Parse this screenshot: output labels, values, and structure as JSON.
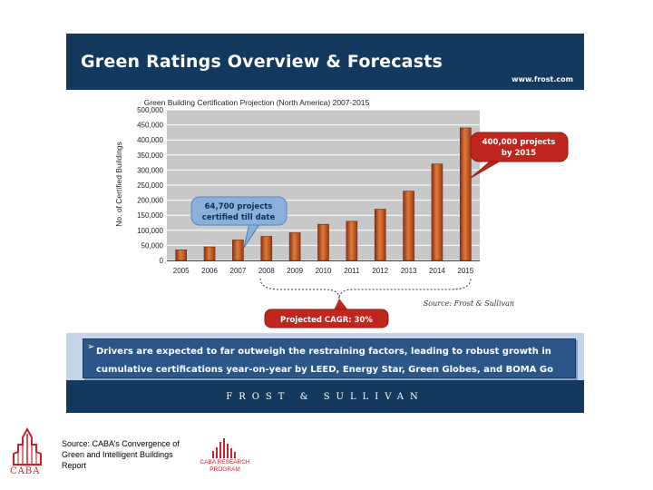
{
  "slide": {
    "title": "Green Ratings Overview & Forecasts",
    "url": "www.frost.com",
    "footer_brand": "FROST & SULLIVAN",
    "callout_arrow": "➢",
    "callout_text": "Drivers are expected to far outweigh the restraining factors, leading to robust growth in cumulative certifications year-on-year by LEED, Energy Star, Green Globes, and BOMA Go Green."
  },
  "chart_data": {
    "type": "bar",
    "title": "Green Building Certification Projection (North America) 2007-2015",
    "ylabel": "No. of Certified Buildings",
    "xlabel": "",
    "categories": [
      "2005",
      "2006",
      "2007",
      "2008",
      "2009",
      "2010",
      "2011",
      "2012",
      "2013",
      "2014",
      "2015"
    ],
    "values": [
      35000,
      45000,
      68000,
      80000,
      92000,
      120000,
      130000,
      170000,
      230000,
      320000,
      440000
    ],
    "ylim": [
      0,
      500000
    ],
    "yticks": [
      "0",
      "50,000",
      "100,000",
      "150,000",
      "200,000",
      "250,000",
      "300,000",
      "350,000",
      "400,000",
      "450,000",
      "500,000"
    ],
    "grid": true,
    "bar_color": "#c0561e",
    "plot_background": "#c8c8c8",
    "source": "Source: Frost & Sullivan",
    "annotations": {
      "certified": "64,700 projects certified till date",
      "target": "400,000 projects by 2015",
      "cagr": "Projected CAGR: 30%"
    }
  },
  "footer": {
    "source_note": "Source: CABA’s Convergence of Green and Intelligent Buildings Report",
    "caba_logo": "CABA",
    "program_logo": "CABA RESEARCH PROGRAM"
  },
  "colors": {
    "header": "#13395e",
    "callout_box": "#2c5687",
    "callout_band": "#c5d4e6",
    "bubble_blue": "#8ab0dc",
    "bubble_red": "#c0261d",
    "brand_red": "#c8202f"
  }
}
